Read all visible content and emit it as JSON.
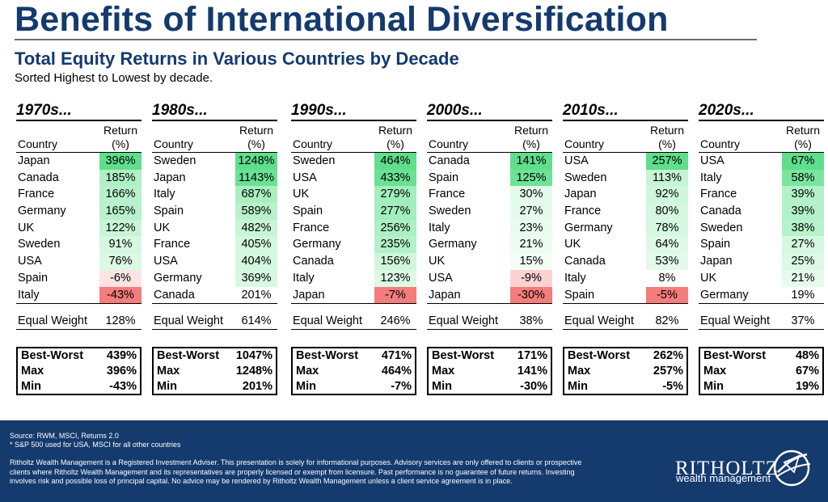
{
  "title": "Benefits of International Diversification",
  "subtitle": "Total Equity Returns in Various Countries by Decade",
  "note": "Sorted Highest to Lowest by decade.",
  "labels": {
    "country": "Country",
    "return_line1": "Return",
    "return_line2": "(%)",
    "equal_weight": "Equal Weight",
    "best_worst": "Best-Worst",
    "max": "Max",
    "min": "Min"
  },
  "decades": [
    {
      "title": "1970s...",
      "rows": [
        {
          "country": "Japan",
          "value": "396%",
          "color": "#5fde8c"
        },
        {
          "country": "Canada",
          "value": "185%",
          "color": "#b0f0c6"
        },
        {
          "country": "France",
          "value": "166%",
          "color": "#b8f2cc"
        },
        {
          "country": "Germany",
          "value": "165%",
          "color": "#b8f2cc"
        },
        {
          "country": "UK",
          "value": "122%",
          "color": "#c8f5d7"
        },
        {
          "country": "Sweden",
          "value": "91%",
          "color": "#d6f8e1"
        },
        {
          "country": "USA",
          "value": "76%",
          "color": "#dcf9e6"
        },
        {
          "country": "Spain",
          "value": "-6%",
          "color": "#fde3e3"
        },
        {
          "country": "Italy",
          "value": "-43%",
          "color": "#f47c7c"
        }
      ],
      "equal_weight": "128%",
      "best_worst": "439%",
      "max": "396%",
      "min": "-43%"
    },
    {
      "title": "1980s...",
      "rows": [
        {
          "country": "Sweden",
          "value": "1248%",
          "color": "#5fde8c"
        },
        {
          "country": "Japan",
          "value": "1143%",
          "color": "#6ae194"
        },
        {
          "country": "Italy",
          "value": "687%",
          "color": "#aaefc2"
        },
        {
          "country": "Spain",
          "value": "589%",
          "color": "#b8f2cc"
        },
        {
          "country": "UK",
          "value": "482%",
          "color": "#c8f5d7"
        },
        {
          "country": "France",
          "value": "405%",
          "color": "#d3f7df"
        },
        {
          "country": "USA",
          "value": "404%",
          "color": "#d3f7df"
        },
        {
          "country": "Germany",
          "value": "369%",
          "color": "#d8f8e3"
        },
        {
          "country": "Canada",
          "value": "201%",
          "color": "#ffffff"
        }
      ],
      "equal_weight": "614%",
      "best_worst": "1047%",
      "max": "1248%",
      "min": "201%"
    },
    {
      "title": "1990s...",
      "rows": [
        {
          "country": "Sweden",
          "value": "464%",
          "color": "#5fde8c"
        },
        {
          "country": "USA",
          "value": "433%",
          "color": "#6ae194"
        },
        {
          "country": "UK",
          "value": "279%",
          "color": "#a3eebd"
        },
        {
          "country": "Spain",
          "value": "277%",
          "color": "#a3eebd"
        },
        {
          "country": "France",
          "value": "256%",
          "color": "#abf0c3"
        },
        {
          "country": "Germany",
          "value": "235%",
          "color": "#b3f1c9"
        },
        {
          "country": "Canada",
          "value": "156%",
          "color": "#cff6dc"
        },
        {
          "country": "Italy",
          "value": "123%",
          "color": "#dbf9e5"
        },
        {
          "country": "Japan",
          "value": "-7%",
          "color": "#f47c7c"
        }
      ],
      "equal_weight": "246%",
      "best_worst": "471%",
      "max": "464%",
      "min": "-7%"
    },
    {
      "title": "2000s...",
      "rows": [
        {
          "country": "Canada",
          "value": "141%",
          "color": "#5fde8c"
        },
        {
          "country": "Spain",
          "value": "125%",
          "color": "#6ee297"
        },
        {
          "country": "France",
          "value": "30%",
          "color": "#e3fbeb"
        },
        {
          "country": "Sweden",
          "value": "27%",
          "color": "#e6fbee"
        },
        {
          "country": "Italy",
          "value": "23%",
          "color": "#eafcf0"
        },
        {
          "country": "Germany",
          "value": "21%",
          "color": "#ecfcf2"
        },
        {
          "country": "UK",
          "value": "15%",
          "color": "#f2fdf6"
        },
        {
          "country": "USA",
          "value": "-9%",
          "color": "#fbd2d2"
        },
        {
          "country": "Japan",
          "value": "-30%",
          "color": "#f47c7c"
        }
      ],
      "equal_weight": "38%",
      "best_worst": "171%",
      "max": "141%",
      "min": "-30%"
    },
    {
      "title": "2010s...",
      "rows": [
        {
          "country": "USA",
          "value": "257%",
          "color": "#5fde8c"
        },
        {
          "country": "Sweden",
          "value": "113%",
          "color": "#c6f4d5"
        },
        {
          "country": "Japan",
          "value": "92%",
          "color": "#d0f6dd"
        },
        {
          "country": "France",
          "value": "80%",
          "color": "#d6f8e1"
        },
        {
          "country": "Germany",
          "value": "78%",
          "color": "#d6f8e1"
        },
        {
          "country": "UK",
          "value": "64%",
          "color": "#def9e7"
        },
        {
          "country": "Canada",
          "value": "53%",
          "color": "#e3faeb"
        },
        {
          "country": "Italy",
          "value": "8%",
          "color": "#ffffff"
        },
        {
          "country": "Spain",
          "value": "-5%",
          "color": "#f47c7c"
        }
      ],
      "equal_weight": "82%",
      "best_worst": "262%",
      "max": "257%",
      "min": "-5%"
    },
    {
      "title": "2020s...",
      "rows": [
        {
          "country": "USA",
          "value": "67%",
          "color": "#5fde8c"
        },
        {
          "country": "Italy",
          "value": "58%",
          "color": "#7be59f"
        },
        {
          "country": "France",
          "value": "39%",
          "color": "#b3f1c9"
        },
        {
          "country": "Canada",
          "value": "39%",
          "color": "#b3f1c9"
        },
        {
          "country": "Sweden",
          "value": "38%",
          "color": "#b6f2cb"
        },
        {
          "country": "Spain",
          "value": "27%",
          "color": "#d6f8e1"
        },
        {
          "country": "Japan",
          "value": "25%",
          "color": "#dbf9e5"
        },
        {
          "country": "UK",
          "value": "21%",
          "color": "#e6fbee"
        },
        {
          "country": "Germany",
          "value": "19%",
          "color": "#ffffff"
        }
      ],
      "equal_weight": "37%",
      "best_worst": "48%",
      "max": "67%",
      "min": "19%"
    }
  ],
  "footer": {
    "source_line1": "Source: RWM, MSCI, Returns 2.0",
    "source_line2": "* S&P 500 used for USA, MSCI for all other countries",
    "disclaimer": "Ritholtz Wealth Management is a Registered Investment Adviser. This presentation is solely for informational purposes. Advisory services are only offered to clients or prospective clients where Ritholtz Wealth Management and its representatives are properly licensed or exempt from licensure. Past performance is no guarantee of future returns. Investing involves risk and possible loss of principal capital. No advice may be rendered by Ritholtz Wealth Management unless a client service agreement is in place.",
    "logo_name": "RITHOLTZ",
    "logo_sub": "wealth management",
    "logo_mark_icon": "ritholtz-sailboat-logo-icon",
    "background_color": "#143a6e"
  }
}
